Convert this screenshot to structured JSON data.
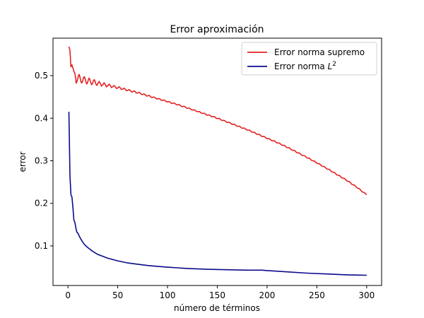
{
  "chart_data": {
    "type": "line",
    "title": "Error aproximación",
    "xlabel": "número de términos",
    "ylabel": "error",
    "xlim": [
      -15,
      315
    ],
    "ylim": [
      0.007,
      0.588
    ],
    "xticks": [
      0,
      50,
      100,
      150,
      200,
      250,
      300
    ],
    "yticks": [
      0.1,
      0.2,
      0.3,
      0.4,
      0.5
    ],
    "ytick_labels": [
      "0.1",
      "0.2",
      "0.3",
      "0.4",
      "0.5"
    ],
    "grid": false,
    "legend_position": "top-right",
    "series": [
      {
        "name": "Error norma supremo",
        "name_sup": "",
        "color": "#e32222",
        "x": [
          1,
          2,
          3,
          4,
          5,
          6,
          7,
          8,
          9,
          10,
          12,
          14,
          16,
          18,
          20,
          25,
          30,
          40,
          50,
          60,
          70,
          80,
          90,
          100,
          110,
          120,
          130,
          140,
          150,
          160,
          170,
          180,
          190,
          200,
          210,
          220,
          230,
          240,
          250,
          260,
          270,
          280,
          290,
          300
        ],
        "y": [
          0.568,
          0.56,
          0.52,
          0.525,
          0.518,
          0.51,
          0.505,
          0.49,
          0.498,
          0.495,
          0.49,
          0.493,
          0.488,
          0.49,
          0.487,
          0.485,
          0.482,
          0.477,
          0.472,
          0.466,
          0.46,
          0.453,
          0.446,
          0.439,
          0.432,
          0.424,
          0.416,
          0.408,
          0.4,
          0.391,
          0.382,
          0.373,
          0.363,
          0.353,
          0.343,
          0.332,
          0.32,
          0.308,
          0.295,
          0.282,
          0.268,
          0.254,
          0.238,
          0.22
        ]
      },
      {
        "name": "Error norma ",
        "name_sup": "2",
        "name_italic": "L",
        "color": "#0a0a8c",
        "x": [
          1,
          2,
          3,
          4,
          5,
          6,
          7,
          8,
          9,
          10,
          12,
          14,
          16,
          18,
          20,
          25,
          30,
          40,
          50,
          60,
          70,
          80,
          90,
          100,
          120,
          140,
          160,
          180,
          195,
          200,
          220,
          240,
          260,
          280,
          300
        ],
        "y": [
          0.415,
          0.265,
          0.22,
          0.215,
          0.19,
          0.16,
          0.155,
          0.142,
          0.132,
          0.13,
          0.12,
          0.112,
          0.105,
          0.1,
          0.096,
          0.087,
          0.08,
          0.071,
          0.065,
          0.06,
          0.057,
          0.054,
          0.052,
          0.05,
          0.047,
          0.045,
          0.044,
          0.043,
          0.043,
          0.042,
          0.039,
          0.036,
          0.034,
          0.032,
          0.031
        ]
      }
    ]
  }
}
